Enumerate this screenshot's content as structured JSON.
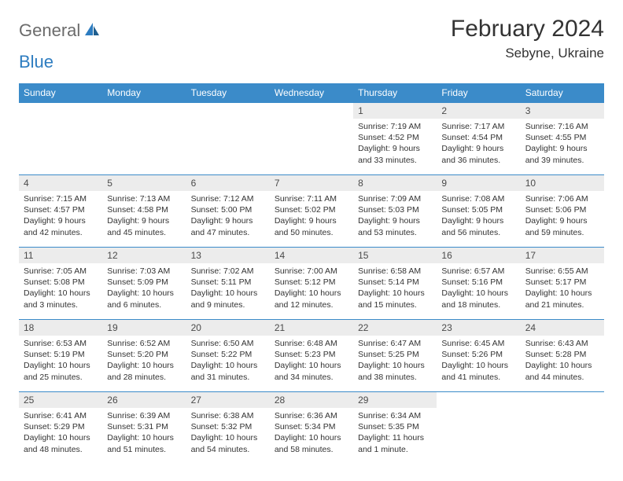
{
  "logo": {
    "general": "General",
    "blue": "Blue"
  },
  "title": {
    "month": "February 2024",
    "location": "Sebyne, Ukraine"
  },
  "colors": {
    "header_bar": "#3b8bc9",
    "daynum_bg": "#ececec",
    "rule": "#3b8bc9",
    "text": "#333333",
    "logo_gray": "#6b6b6b",
    "logo_blue": "#2d7cc0"
  },
  "day_headers": [
    "Sunday",
    "Monday",
    "Tuesday",
    "Wednesday",
    "Thursday",
    "Friday",
    "Saturday"
  ],
  "weeks": [
    [
      null,
      null,
      null,
      null,
      {
        "n": "1",
        "sunrise": "Sunrise: 7:19 AM",
        "sunset": "Sunset: 4:52 PM",
        "day": "Daylight: 9 hours and 33 minutes."
      },
      {
        "n": "2",
        "sunrise": "Sunrise: 7:17 AM",
        "sunset": "Sunset: 4:54 PM",
        "day": "Daylight: 9 hours and 36 minutes."
      },
      {
        "n": "3",
        "sunrise": "Sunrise: 7:16 AM",
        "sunset": "Sunset: 4:55 PM",
        "day": "Daylight: 9 hours and 39 minutes."
      }
    ],
    [
      {
        "n": "4",
        "sunrise": "Sunrise: 7:15 AM",
        "sunset": "Sunset: 4:57 PM",
        "day": "Daylight: 9 hours and 42 minutes."
      },
      {
        "n": "5",
        "sunrise": "Sunrise: 7:13 AM",
        "sunset": "Sunset: 4:58 PM",
        "day": "Daylight: 9 hours and 45 minutes."
      },
      {
        "n": "6",
        "sunrise": "Sunrise: 7:12 AM",
        "sunset": "Sunset: 5:00 PM",
        "day": "Daylight: 9 hours and 47 minutes."
      },
      {
        "n": "7",
        "sunrise": "Sunrise: 7:11 AM",
        "sunset": "Sunset: 5:02 PM",
        "day": "Daylight: 9 hours and 50 minutes."
      },
      {
        "n": "8",
        "sunrise": "Sunrise: 7:09 AM",
        "sunset": "Sunset: 5:03 PM",
        "day": "Daylight: 9 hours and 53 minutes."
      },
      {
        "n": "9",
        "sunrise": "Sunrise: 7:08 AM",
        "sunset": "Sunset: 5:05 PM",
        "day": "Daylight: 9 hours and 56 minutes."
      },
      {
        "n": "10",
        "sunrise": "Sunrise: 7:06 AM",
        "sunset": "Sunset: 5:06 PM",
        "day": "Daylight: 9 hours and 59 minutes."
      }
    ],
    [
      {
        "n": "11",
        "sunrise": "Sunrise: 7:05 AM",
        "sunset": "Sunset: 5:08 PM",
        "day": "Daylight: 10 hours and 3 minutes."
      },
      {
        "n": "12",
        "sunrise": "Sunrise: 7:03 AM",
        "sunset": "Sunset: 5:09 PM",
        "day": "Daylight: 10 hours and 6 minutes."
      },
      {
        "n": "13",
        "sunrise": "Sunrise: 7:02 AM",
        "sunset": "Sunset: 5:11 PM",
        "day": "Daylight: 10 hours and 9 minutes."
      },
      {
        "n": "14",
        "sunrise": "Sunrise: 7:00 AM",
        "sunset": "Sunset: 5:12 PM",
        "day": "Daylight: 10 hours and 12 minutes."
      },
      {
        "n": "15",
        "sunrise": "Sunrise: 6:58 AM",
        "sunset": "Sunset: 5:14 PM",
        "day": "Daylight: 10 hours and 15 minutes."
      },
      {
        "n": "16",
        "sunrise": "Sunrise: 6:57 AM",
        "sunset": "Sunset: 5:16 PM",
        "day": "Daylight: 10 hours and 18 minutes."
      },
      {
        "n": "17",
        "sunrise": "Sunrise: 6:55 AM",
        "sunset": "Sunset: 5:17 PM",
        "day": "Daylight: 10 hours and 21 minutes."
      }
    ],
    [
      {
        "n": "18",
        "sunrise": "Sunrise: 6:53 AM",
        "sunset": "Sunset: 5:19 PM",
        "day": "Daylight: 10 hours and 25 minutes."
      },
      {
        "n": "19",
        "sunrise": "Sunrise: 6:52 AM",
        "sunset": "Sunset: 5:20 PM",
        "day": "Daylight: 10 hours and 28 minutes."
      },
      {
        "n": "20",
        "sunrise": "Sunrise: 6:50 AM",
        "sunset": "Sunset: 5:22 PM",
        "day": "Daylight: 10 hours and 31 minutes."
      },
      {
        "n": "21",
        "sunrise": "Sunrise: 6:48 AM",
        "sunset": "Sunset: 5:23 PM",
        "day": "Daylight: 10 hours and 34 minutes."
      },
      {
        "n": "22",
        "sunrise": "Sunrise: 6:47 AM",
        "sunset": "Sunset: 5:25 PM",
        "day": "Daylight: 10 hours and 38 minutes."
      },
      {
        "n": "23",
        "sunrise": "Sunrise: 6:45 AM",
        "sunset": "Sunset: 5:26 PM",
        "day": "Daylight: 10 hours and 41 minutes."
      },
      {
        "n": "24",
        "sunrise": "Sunrise: 6:43 AM",
        "sunset": "Sunset: 5:28 PM",
        "day": "Daylight: 10 hours and 44 minutes."
      }
    ],
    [
      {
        "n": "25",
        "sunrise": "Sunrise: 6:41 AM",
        "sunset": "Sunset: 5:29 PM",
        "day": "Daylight: 10 hours and 48 minutes."
      },
      {
        "n": "26",
        "sunrise": "Sunrise: 6:39 AM",
        "sunset": "Sunset: 5:31 PM",
        "day": "Daylight: 10 hours and 51 minutes."
      },
      {
        "n": "27",
        "sunrise": "Sunrise: 6:38 AM",
        "sunset": "Sunset: 5:32 PM",
        "day": "Daylight: 10 hours and 54 minutes."
      },
      {
        "n": "28",
        "sunrise": "Sunrise: 6:36 AM",
        "sunset": "Sunset: 5:34 PM",
        "day": "Daylight: 10 hours and 58 minutes."
      },
      {
        "n": "29",
        "sunrise": "Sunrise: 6:34 AM",
        "sunset": "Sunset: 5:35 PM",
        "day": "Daylight: 11 hours and 1 minute."
      },
      null,
      null
    ]
  ]
}
